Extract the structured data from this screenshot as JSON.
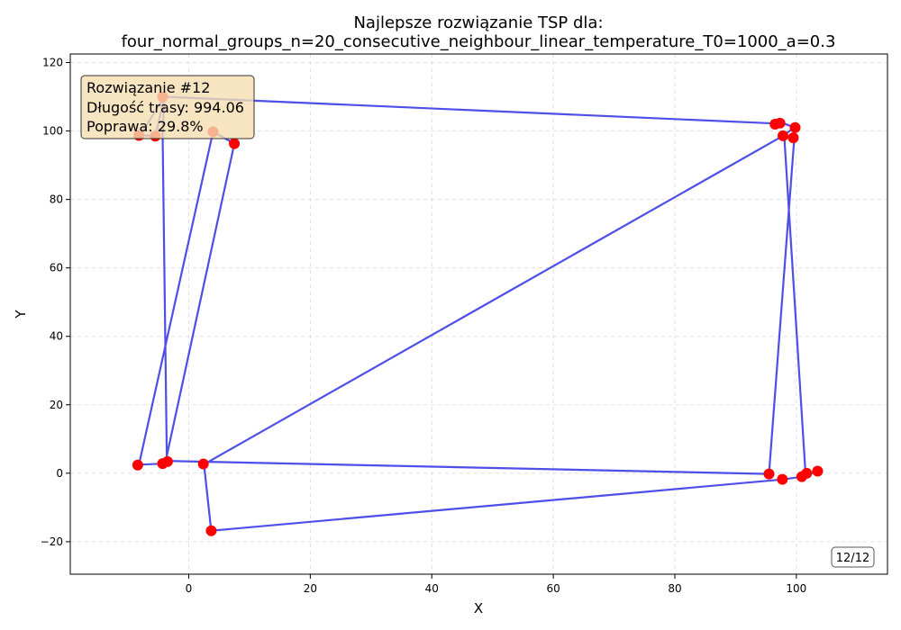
{
  "chart_data": {
    "type": "scatter",
    "title_line1": "Najlepsze rozwiązanie TSP dla:",
    "title_line2": "four_normal_groups_n=20_consecutive_neighbour_linear_temperature_T0=1000_a=0.3",
    "xlabel": "X",
    "ylabel": "Y",
    "xlim": [
      -19.5,
      115
    ],
    "ylim": [
      -29.5,
      122.5
    ],
    "xticks": [
      0,
      20,
      40,
      60,
      80,
      100
    ],
    "yticks": [
      -20,
      0,
      20,
      40,
      60,
      80,
      100,
      120
    ],
    "xtick_labels": [
      "0",
      "20",
      "40",
      "60",
      "80",
      "100"
    ],
    "ytick_labels": [
      "−20",
      "0",
      "20",
      "40",
      "60",
      "80",
      "100",
      "120"
    ],
    "grid": true,
    "route_color": "#3f3fe6",
    "point_color": "#ff0000",
    "route": [
      [
        7.5,
        96.3
      ],
      [
        4.0,
        99.8
      ],
      [
        -8.2,
        2.5
      ],
      [
        -4.3,
        2.8
      ],
      [
        -3.6,
        3.4
      ],
      [
        -4.3,
        98.8
      ],
      [
        -4.0,
        110.0
      ],
      [
        -5.5,
        98.5
      ],
      [
        -8.0,
        98.8
      ],
      [
        -4.0,
        110.0
      ],
      [
        96.5,
        102.2
      ],
      [
        97.5,
        102.5
      ],
      [
        99.8,
        101.0
      ],
      [
        99.6,
        98.0
      ],
      [
        98.0,
        98.6
      ],
      [
        101.5,
        0.0
      ],
      [
        103.5,
        0.6
      ],
      [
        101.0,
        -1.0
      ],
      [
        97.8,
        -1.8
      ],
      [
        3.7,
        -16.8
      ],
      [
        2.5,
        2.6
      ],
      [
        97.8,
        98.6
      ],
      [
        99.8,
        101.2
      ],
      [
        95.5,
        -0.2
      ],
      [
        -3.8,
        3.6
      ],
      [
        7.5,
        96.3
      ]
    ],
    "points": [
      [
        -8.2,
        98.7
      ],
      [
        -5.5,
        98.5
      ],
      [
        -4.3,
        110.0
      ],
      [
        4.0,
        99.8
      ],
      [
        7.5,
        96.3
      ],
      [
        96.5,
        102.0
      ],
      [
        97.3,
        102.3
      ],
      [
        97.8,
        98.6
      ],
      [
        99.5,
        98.0
      ],
      [
        99.8,
        101.0
      ],
      [
        -8.4,
        2.4
      ],
      [
        -4.3,
        2.8
      ],
      [
        -3.5,
        3.4
      ],
      [
        2.4,
        2.7
      ],
      [
        3.7,
        -16.8
      ],
      [
        95.5,
        -0.2
      ],
      [
        97.7,
        -1.8
      ],
      [
        100.9,
        -1.0
      ],
      [
        101.7,
        0.0
      ],
      [
        103.5,
        0.6
      ]
    ],
    "info": {
      "line1": "Rozwiązanie #12",
      "line2": "Długość trasy: 994.06",
      "line3": "Poprawa: 29.8%"
    },
    "frame_label": "12/12"
  }
}
